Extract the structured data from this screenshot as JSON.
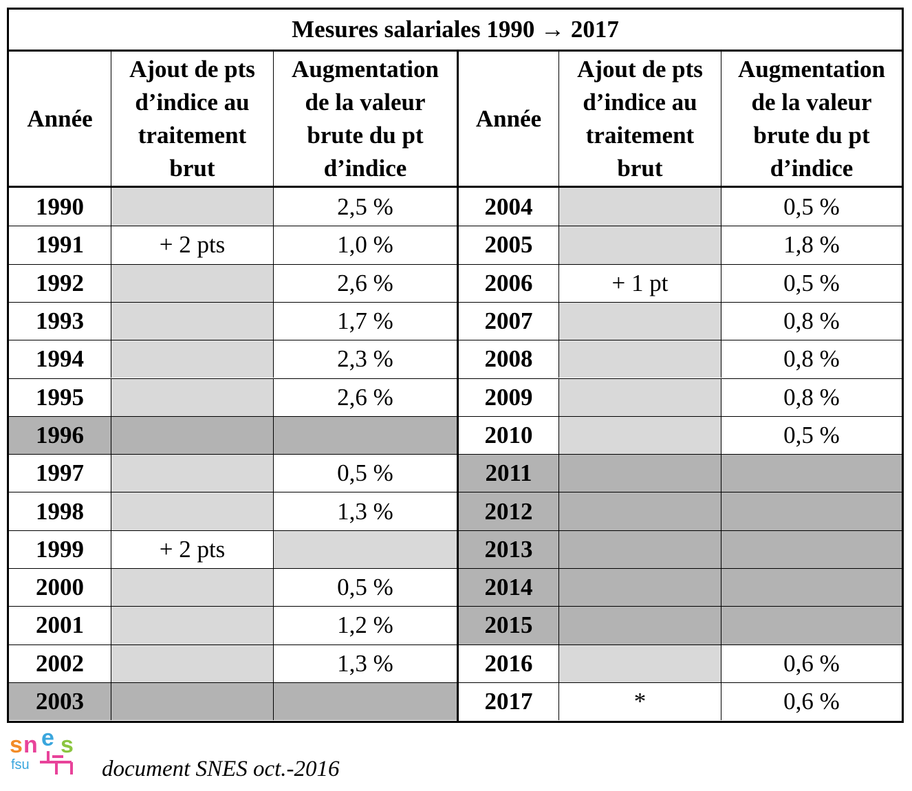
{
  "title": "Mesures salariales 1990 → 2017",
  "headers": {
    "year": "Année",
    "points": [
      "Ajout de pts",
      "d’indice au",
      "traitement",
      "brut"
    ],
    "increase": [
      "Augmentation",
      "de la valeur",
      "brute du pt",
      "d’indice"
    ]
  },
  "left_rows": [
    {
      "year": "1990",
      "points": "",
      "increase": "2,5 %",
      "shade": "none"
    },
    {
      "year": "1991",
      "points": "+ 2 pts",
      "increase": "1,0 %",
      "shade": "none"
    },
    {
      "year": "1992",
      "points": "",
      "increase": "2,6 %",
      "shade": "none"
    },
    {
      "year": "1993",
      "points": "",
      "increase": "1,7 %",
      "shade": "none"
    },
    {
      "year": "1994",
      "points": "",
      "increase": "2,3 %",
      "shade": "none"
    },
    {
      "year": "1995",
      "points": "",
      "increase": "2,6 %",
      "shade": "none"
    },
    {
      "year": "1996",
      "points": "",
      "increase": "",
      "shade": "dark"
    },
    {
      "year": "1997",
      "points": "",
      "increase": "0,5 %",
      "shade": "none"
    },
    {
      "year": "1998",
      "points": "",
      "increase": "1,3 %",
      "shade": "none"
    },
    {
      "year": "1999",
      "points": "+ 2 pts",
      "increase": "",
      "shade": "none"
    },
    {
      "year": "2000",
      "points": "",
      "increase": "0,5 %",
      "shade": "none"
    },
    {
      "year": "2001",
      "points": "",
      "increase": "1,2 %",
      "shade": "none"
    },
    {
      "year": "2002",
      "points": "",
      "increase": "1,3 %",
      "shade": "none"
    },
    {
      "year": "2003",
      "points": "",
      "increase": "",
      "shade": "dark"
    }
  ],
  "right_rows": [
    {
      "year": "2004",
      "points": "",
      "increase": "0,5 %",
      "shade": "none"
    },
    {
      "year": "2005",
      "points": "",
      "increase": "1,8 %",
      "shade": "none"
    },
    {
      "year": "2006",
      "points": "+ 1 pt",
      "increase": "0,5 %",
      "shade": "none"
    },
    {
      "year": "2007",
      "points": "",
      "increase": "0,8 %",
      "shade": "none"
    },
    {
      "year": "2008",
      "points": "",
      "increase": "0,8 %",
      "shade": "none"
    },
    {
      "year": "2009",
      "points": "",
      "increase": "0,8 %",
      "shade": "none"
    },
    {
      "year": "2010",
      "points": "",
      "increase": "0,5 %",
      "shade": "none"
    },
    {
      "year": "2011",
      "points": "",
      "increase": "",
      "shade": "dark"
    },
    {
      "year": "2012",
      "points": "",
      "increase": "",
      "shade": "dark"
    },
    {
      "year": "2013",
      "points": "",
      "increase": "",
      "shade": "dark"
    },
    {
      "year": "2014",
      "points": "",
      "increase": "",
      "shade": "dark"
    },
    {
      "year": "2015",
      "points": "",
      "increase": "",
      "shade": "dark"
    },
    {
      "year": "2016",
      "points": "",
      "increase": "0,6 %",
      "shade": "none"
    },
    {
      "year": "2017",
      "points": "*",
      "increase": "0,6 %",
      "shade": "none"
    }
  ],
  "logo": {
    "text_top": "snes",
    "text_bottom": "fsu",
    "icon": "snes-fsu-logo"
  },
  "footer": "document SNES oct.-2016",
  "colors": {
    "light_gray": "#d9d9d9",
    "dark_gray": "#b3b3b3"
  }
}
